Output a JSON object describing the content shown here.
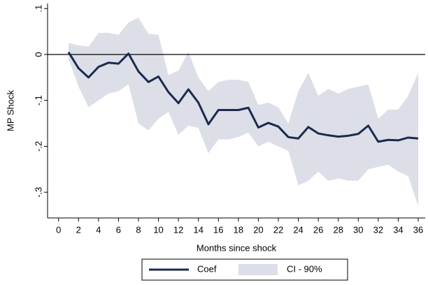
{
  "chart_data": {
    "type": "line",
    "x_label": "Months since shock",
    "y_label": "MP Shock",
    "x": [
      1,
      2,
      3,
      4,
      5,
      6,
      7,
      8,
      9,
      10,
      11,
      12,
      13,
      14,
      15,
      16,
      17,
      18,
      19,
      20,
      21,
      22,
      23,
      24,
      25,
      26,
      27,
      28,
      29,
      30,
      31,
      32,
      33,
      34,
      35,
      36
    ],
    "series": [
      {
        "name": "Coef",
        "color": "#1b2a4e",
        "values": [
          0.005,
          -0.03,
          -0.05,
          -0.027,
          -0.018,
          -0.02,
          0.002,
          -0.037,
          -0.06,
          -0.048,
          -0.082,
          -0.106,
          -0.076,
          -0.105,
          -0.152,
          -0.121,
          -0.121,
          -0.121,
          -0.116,
          -0.159,
          -0.149,
          -0.157,
          -0.18,
          -0.183,
          -0.158,
          -0.172,
          -0.176,
          -0.179,
          -0.177,
          -0.173,
          -0.155,
          -0.19,
          -0.186,
          -0.187,
          -0.181,
          -0.183
        ]
      }
    ],
    "band": {
      "name": "CI - 90%",
      "color": "#dcdfe8",
      "upper": [
        0.025,
        0.02,
        0.017,
        0.047,
        0.047,
        0.043,
        0.07,
        0.08,
        0.045,
        0.043,
        -0.045,
        -0.035,
        0.005,
        -0.05,
        -0.08,
        -0.06,
        -0.055,
        -0.055,
        -0.06,
        -0.11,
        -0.105,
        -0.115,
        -0.15,
        -0.08,
        -0.04,
        -0.09,
        -0.075,
        -0.085,
        -0.075,
        -0.07,
        -0.065,
        -0.14,
        -0.12,
        -0.12,
        -0.09,
        -0.04
      ],
      "lower": [
        -0.01,
        -0.07,
        -0.115,
        -0.1,
        -0.085,
        -0.08,
        -0.065,
        -0.15,
        -0.165,
        -0.14,
        -0.125,
        -0.175,
        -0.155,
        -0.16,
        -0.215,
        -0.185,
        -0.185,
        -0.18,
        -0.17,
        -0.2,
        -0.19,
        -0.2,
        -0.21,
        -0.285,
        -0.275,
        -0.255,
        -0.275,
        -0.27,
        -0.275,
        -0.275,
        -0.25,
        -0.245,
        -0.24,
        -0.255,
        -0.265,
        -0.33
      ]
    },
    "hline": 0,
    "xlim": [
      -1.1,
      36.7
    ],
    "ylim": [
      -0.356,
      0.111
    ],
    "xticks": [
      0,
      2,
      4,
      6,
      8,
      10,
      12,
      14,
      16,
      18,
      20,
      22,
      24,
      26,
      28,
      30,
      32,
      34,
      36
    ],
    "yticks": [
      {
        "value": 0.1,
        "label": ".1"
      },
      0,
      {
        "value": -0.1,
        "label": "-.1"
      },
      {
        "value": -0.2,
        "label": "-.2"
      },
      {
        "value": -0.3,
        "label": "-.3"
      }
    ],
    "grid": false,
    "legend": "bottom"
  }
}
